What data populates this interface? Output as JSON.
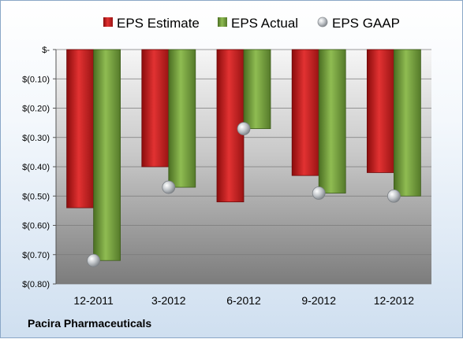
{
  "chart_data": {
    "type": "bar",
    "categories": [
      "12-2011",
      "3-2012",
      "6-2012",
      "9-2012",
      "12-2012"
    ],
    "series": [
      {
        "name": "EPS Estimate",
        "kind": "bar",
        "color": "#cc2222",
        "values": [
          -0.54,
          -0.4,
          -0.52,
          -0.43,
          -0.42
        ]
      },
      {
        "name": "EPS Actual",
        "kind": "bar",
        "color": "#77a040",
        "values": [
          -0.72,
          -0.47,
          -0.27,
          -0.49,
          -0.5
        ]
      },
      {
        "name": "EPS GAAP",
        "kind": "marker",
        "color": "#b8bcc0",
        "values": [
          -0.72,
          -0.47,
          -0.27,
          -0.49,
          -0.5
        ]
      }
    ],
    "yticks": [
      0,
      -0.1,
      -0.2,
      -0.3,
      -0.4,
      -0.5,
      -0.6,
      -0.7,
      -0.8
    ],
    "ytick_labels": [
      "$-",
      "$(0.10)",
      "$(0.20)",
      "$(0.30)",
      "$(0.40)",
      "$(0.50)",
      "$(0.60)",
      "$(0.70)",
      "$(0.80)"
    ],
    "ylim": [
      -0.8,
      0
    ],
    "grid": true,
    "legend_position": "top",
    "title": "",
    "xlabel": "",
    "ylabel": ""
  },
  "footer": {
    "company": "Pacira Pharmaceuticals"
  }
}
